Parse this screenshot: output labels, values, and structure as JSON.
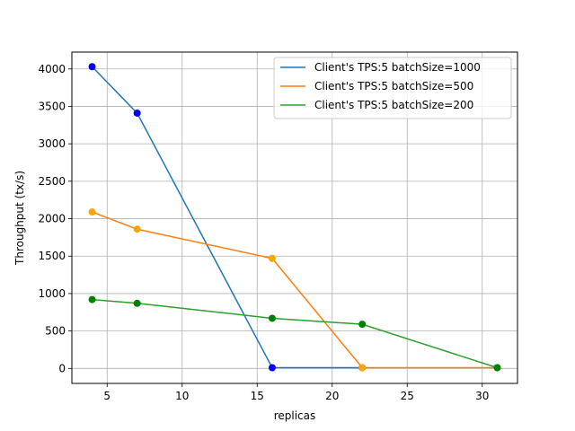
{
  "chart_data": {
    "type": "line",
    "title": "",
    "xlabel": "replicas",
    "ylabel": "Throughput (tx/s)",
    "xlim": [
      2.65,
      32.35
    ],
    "ylim": [
      -200,
      4225
    ],
    "xticks": [
      5,
      10,
      15,
      20,
      25,
      30
    ],
    "yticks": [
      0,
      500,
      1000,
      1500,
      2000,
      2500,
      3000,
      3500,
      4000
    ],
    "grid": true,
    "legend_position": "top-right",
    "series": [
      {
        "name": "Client's TPS:5 batchSize=1000",
        "line_color": "#1f77b4",
        "marker_color": "#0000ff",
        "x": [
          4,
          7,
          16,
          22
        ],
        "y": [
          4030,
          3410,
          10,
          10
        ]
      },
      {
        "name": "Client's TPS:5 batchSize=500",
        "line_color": "#ff7f0e",
        "marker_color": "#ffa500",
        "x": [
          4,
          7,
          16,
          22,
          31
        ],
        "y": [
          2090,
          1860,
          1470,
          10,
          10
        ]
      },
      {
        "name": "Client's TPS:5 batchSize=200",
        "line_color": "#2ca02c",
        "marker_color": "#008000",
        "x": [
          4,
          7,
          16,
          22,
          31
        ],
        "y": [
          920,
          870,
          670,
          590,
          10
        ]
      }
    ]
  }
}
